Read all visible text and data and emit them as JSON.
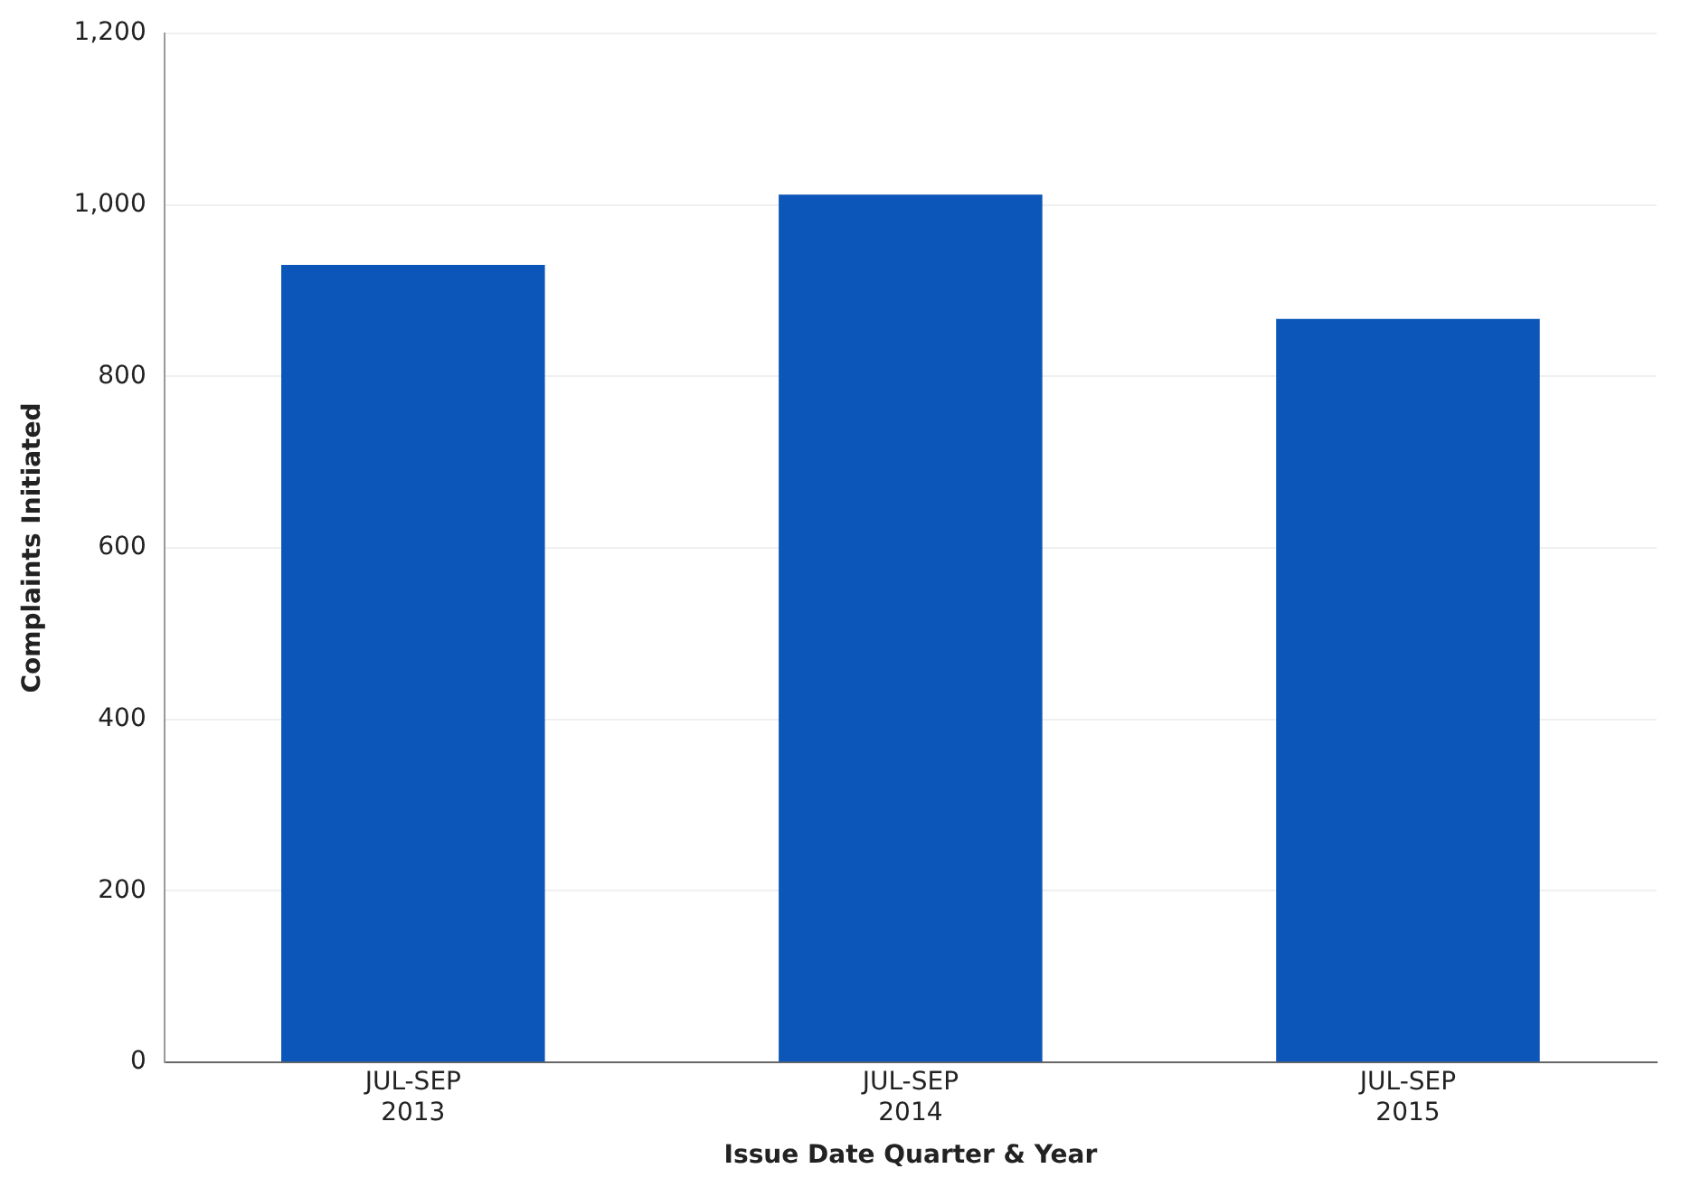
{
  "chart_data": {
    "type": "bar",
    "xlabel": "Issue Date Quarter & Year",
    "ylabel": "Complaints Initiated",
    "categories": [
      "JUL-SEP\n2013",
      "JUL-SEP\n2014",
      "JUL-SEP\n2015"
    ],
    "values": [
      930,
      1012,
      867
    ],
    "color": "#0b56b8",
    "ylim": [
      0,
      1200
    ],
    "yticks": [
      {
        "value": 0,
        "label": "0"
      },
      {
        "value": 200,
        "label": "200"
      },
      {
        "value": 400,
        "label": "400"
      },
      {
        "value": 600,
        "label": "600"
      },
      {
        "value": 800,
        "label": "800"
      },
      {
        "value": 1000,
        "label": "1,000"
      },
      {
        "value": 1200,
        "label": "1,200"
      }
    ],
    "grid": "y"
  }
}
